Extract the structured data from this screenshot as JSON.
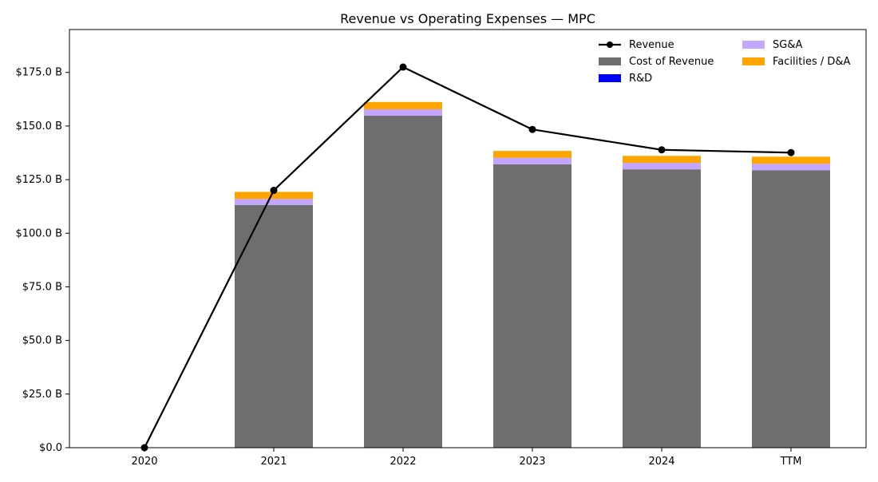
{
  "chart_data": {
    "type": "bar",
    "title": "Revenue vs Operating Expenses — MPC",
    "xlabel": "",
    "ylabel": "",
    "categories": [
      "2020",
      "2021",
      "2022",
      "2023",
      "2024",
      "TTM"
    ],
    "ylim": [
      0,
      195
    ],
    "yticks": [
      0,
      25,
      50,
      75,
      100,
      125,
      150,
      175
    ],
    "ytick_labels": [
      "$0.0",
      "$25.0 B",
      "$50.0 B",
      "$75.0 B",
      "$100.0 B",
      "$125.0 B",
      "$150.0 B",
      "$175.0 B"
    ],
    "grid": false,
    "legend_position": "top-right",
    "stacked_bars": [
      {
        "name": "Cost of Revenue",
        "color": "#6e6e6e",
        "values": [
          0,
          113.2,
          154.8,
          132.1,
          129.8,
          129.4
        ]
      },
      {
        "name": "R&D",
        "color": "#0000ff",
        "values": [
          0,
          0,
          0,
          0,
          0,
          0
        ]
      },
      {
        "name": "SG&A",
        "color": "#c4a5ff",
        "values": [
          0,
          2.8,
          3.0,
          3.1,
          3.0,
          3.0
        ]
      },
      {
        "name": "Facilities / D&A",
        "color": "#ffa500",
        "values": [
          0,
          3.3,
          3.4,
          3.2,
          3.3,
          3.3
        ]
      }
    ],
    "line_series": {
      "name": "Revenue",
      "color": "#000000",
      "values": [
        0,
        120.0,
        177.5,
        148.4,
        138.9,
        137.6
      ]
    },
    "legend": [
      "Revenue",
      "Cost of Revenue",
      "R&D",
      "SG&A",
      "Facilities / D&A"
    ]
  }
}
